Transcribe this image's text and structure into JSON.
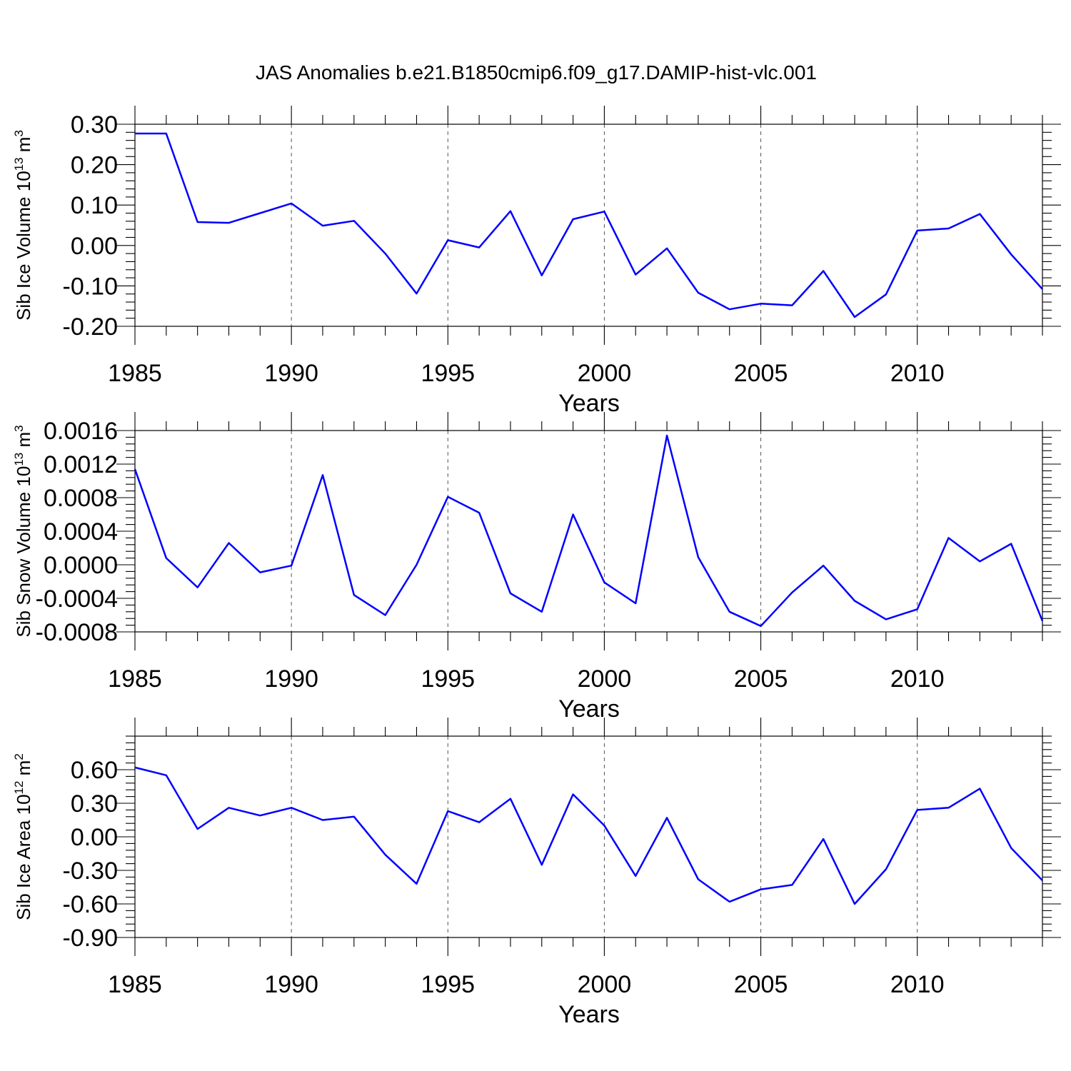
{
  "title": "JAS Anomalies b.e21.B1850cmip6.f09_g17.DAMIP-hist-vlc.001",
  "chart_data": [
    {
      "type": "line",
      "ylabel": "Sib Ice Volume 10",
      "ylabel_sup": "13",
      "ylabel_unit": "m",
      "ylabel_unit_sup": "3",
      "xlabel": "Years",
      "xlim": [
        1985,
        2014
      ],
      "ylim": [
        -0.2,
        0.3
      ],
      "xticks": [
        1985,
        1990,
        1995,
        2000,
        2005,
        2010
      ],
      "xtick_labels": [
        "1985",
        "1990",
        "1995",
        "2000",
        "2005",
        "2010"
      ],
      "yticks": [
        -0.2,
        -0.1,
        0.0,
        0.1,
        0.2,
        0.3
      ],
      "ytick_labels": [
        "-0.20",
        "-0.10",
        "0.00",
        "0.10",
        "0.20",
        "0.30"
      ],
      "grid": "vertical dashed at labeled years",
      "color": "#0000ff",
      "x": [
        1985,
        1986,
        1987,
        1988,
        1989,
        1990,
        1991,
        1992,
        1993,
        1994,
        1995,
        1996,
        1997,
        1998,
        1999,
        2000,
        2001,
        2002,
        2003,
        2004,
        2005,
        2006,
        2007,
        2008,
        2009,
        2010,
        2011,
        2012,
        2013,
        2014
      ],
      "values": [
        0.277,
        0.277,
        0.058,
        0.056,
        0.08,
        0.104,
        0.049,
        0.061,
        -0.02,
        -0.119,
        0.013,
        -0.005,
        0.085,
        -0.074,
        0.065,
        0.084,
        -0.072,
        -0.007,
        -0.117,
        -0.158,
        -0.144,
        -0.148,
        -0.063,
        -0.177,
        -0.121,
        0.037,
        0.042,
        0.078,
        -0.022,
        -0.108
      ]
    },
    {
      "type": "line",
      "ylabel": "Sib Snow Volume 10",
      "ylabel_sup": "13",
      "ylabel_unit": "m",
      "ylabel_unit_sup": "3",
      "xlabel": "Years",
      "xlim": [
        1985,
        2014
      ],
      "ylim": [
        -0.0008,
        0.0016
      ],
      "xticks": [
        1985,
        1990,
        1995,
        2000,
        2005,
        2010
      ],
      "xtick_labels": [
        "1985",
        "1990",
        "1995",
        "2000",
        "2005",
        "2010"
      ],
      "yticks": [
        -0.0008,
        -0.0004,
        0.0,
        0.0004,
        0.0008,
        0.0012,
        0.0016
      ],
      "ytick_labels": [
        "-0.0008",
        "-0.0004",
        "0.0000",
        "0.0004",
        "0.0008",
        "0.0012",
        "0.0016"
      ],
      "grid": "vertical dashed at labeled years",
      "color": "#0000ff",
      "x": [
        1985,
        1986,
        1987,
        1988,
        1989,
        1990,
        1991,
        1992,
        1993,
        1994,
        1995,
        1996,
        1997,
        1998,
        1999,
        2000,
        2001,
        2002,
        2003,
        2004,
        2005,
        2006,
        2007,
        2008,
        2009,
        2010,
        2011,
        2012,
        2013,
        2014
      ],
      "values": [
        0.00114,
        8e-05,
        -0.00027,
        0.00026,
        -9e-05,
        -1e-05,
        0.00107,
        -0.00036,
        -0.0006,
        0.0,
        0.00081,
        0.00062,
        -0.00034,
        -0.00056,
        0.0006,
        -0.00021,
        -0.00046,
        0.00154,
        9e-05,
        -0.00056,
        -0.00073,
        -0.00033,
        -1e-05,
        -0.00043,
        -0.00065,
        -0.00053,
        0.00032,
        4e-05,
        0.00025,
        -0.00067
      ]
    },
    {
      "type": "line",
      "ylabel": "Sib Ice Area 10",
      "ylabel_sup": "12",
      "ylabel_unit": "m",
      "ylabel_unit_sup": "2",
      "xlabel": "Years",
      "xlim": [
        1985,
        2014
      ],
      "ylim": [
        -0.9,
        0.9
      ],
      "xticks": [
        1985,
        1990,
        1995,
        2000,
        2005,
        2010
      ],
      "xtick_labels": [
        "1985",
        "1990",
        "1995",
        "2000",
        "2005",
        "2010"
      ],
      "yticks": [
        -0.9,
        -0.6,
        -0.3,
        0.0,
        0.3,
        0.6
      ],
      "ytick_labels": [
        "-0.90",
        "-0.60",
        "-0.30",
        "0.00",
        "0.30",
        "0.60"
      ],
      "grid": "vertical dashed at labeled years",
      "color": "#0000ff",
      "x": [
        1985,
        1986,
        1987,
        1988,
        1989,
        1990,
        1991,
        1992,
        1993,
        1994,
        1995,
        1996,
        1997,
        1998,
        1999,
        2000,
        2001,
        2002,
        2003,
        2004,
        2005,
        2006,
        2007,
        2008,
        2009,
        2010,
        2011,
        2012,
        2013,
        2014
      ],
      "values": [
        0.62,
        0.55,
        0.07,
        0.26,
        0.19,
        0.26,
        0.15,
        0.18,
        -0.16,
        -0.42,
        0.23,
        0.13,
        0.34,
        -0.25,
        0.38,
        0.1,
        -0.35,
        0.17,
        -0.38,
        -0.58,
        -0.47,
        -0.43,
        -0.02,
        -0.6,
        -0.29,
        0.24,
        0.26,
        0.43,
        -0.1,
        -0.39
      ]
    }
  ]
}
